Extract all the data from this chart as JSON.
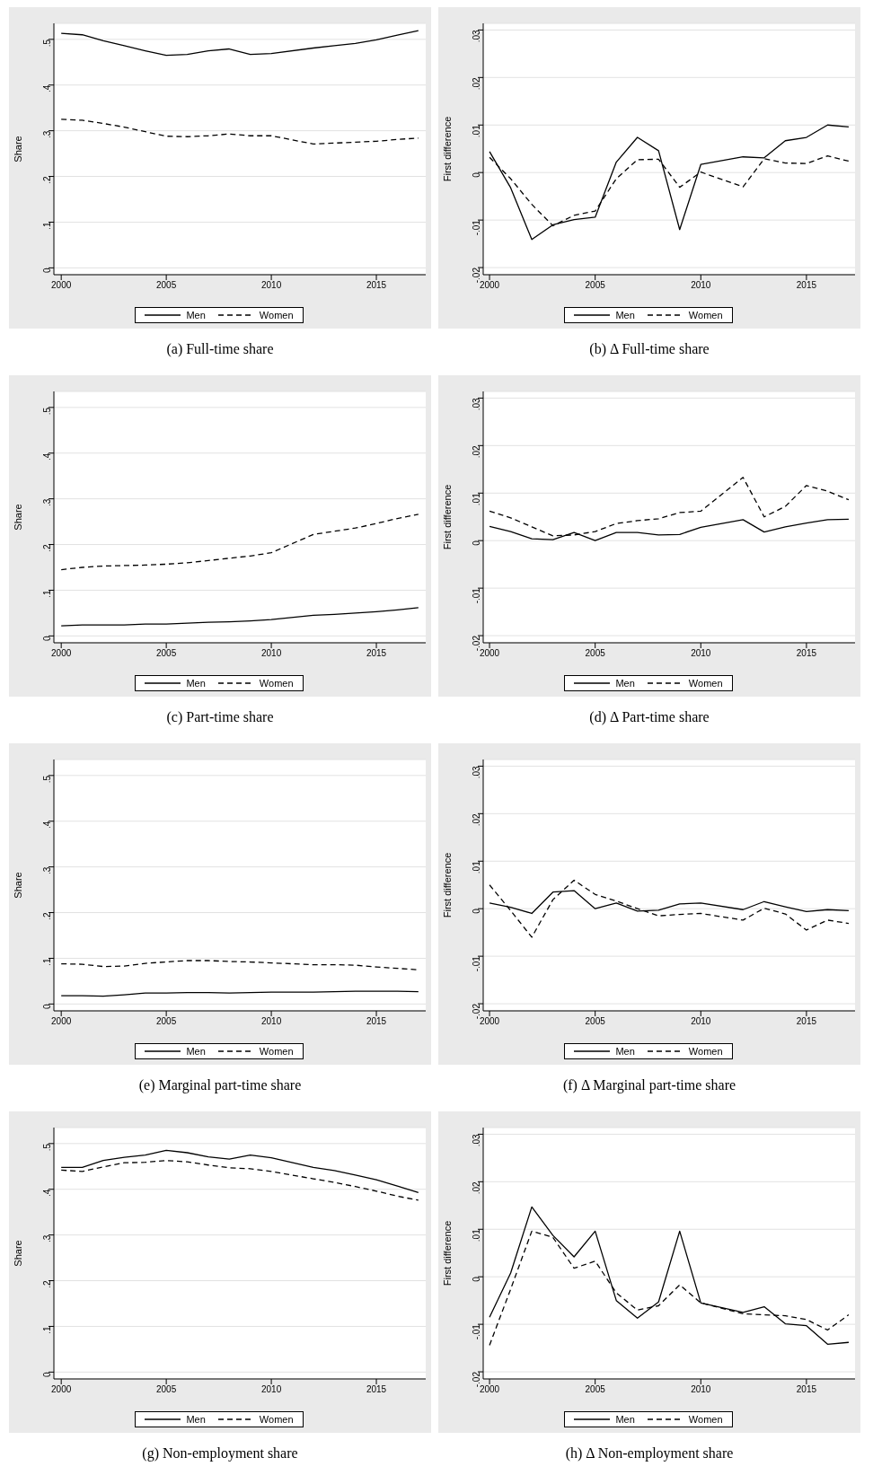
{
  "chart_data": [
    {
      "type": "line",
      "title": "(a) Full-time share",
      "ylabel": "Share",
      "x": [
        2000,
        2001,
        2002,
        2003,
        2004,
        2005,
        2006,
        2007,
        2008,
        2009,
        2010,
        2012,
        2013,
        2014,
        2015,
        2016,
        2017
      ],
      "xlim": [
        1999.65,
        2017.35
      ],
      "xticks": [
        2000,
        2005,
        2010,
        2015
      ],
      "ylim": [
        -0.015,
        0.535
      ],
      "yticks": [
        {
          "value": 0,
          "label": "0"
        },
        {
          "value": 0.1,
          "label": ".1"
        },
        {
          "value": 0.2,
          "label": ".2"
        },
        {
          "value": 0.3,
          "label": ".3"
        },
        {
          "value": 0.4,
          "label": ".4"
        },
        {
          "value": 0.5,
          "label": ".5"
        }
      ],
      "grid": "y",
      "legend": "bottom",
      "series": [
        {
          "name": "Men",
          "color": "#000000",
          "line_style": "solid",
          "values": [
            0.513,
            0.51,
            0.497,
            0.486,
            0.475,
            0.465,
            0.467,
            0.475,
            0.479,
            0.467,
            0.469,
            0.481,
            0.486,
            0.491,
            0.499,
            0.509,
            0.519
          ]
        },
        {
          "name": "Women",
          "color": "#000000",
          "line_style": "dashed",
          "values": [
            0.325,
            0.323,
            0.316,
            0.308,
            0.298,
            0.288,
            0.287,
            0.289,
            0.293,
            0.289,
            0.289,
            0.271,
            0.273,
            0.275,
            0.277,
            0.281,
            0.284
          ]
        }
      ]
    },
    {
      "type": "line",
      "title": "(b) Δ Full-time share",
      "ylabel": "First difference",
      "x": [
        2000,
        2001,
        2002,
        2003,
        2004,
        2005,
        2006,
        2007,
        2008,
        2009,
        2010,
        2012,
        2013,
        2014,
        2015,
        2016,
        2017
      ],
      "xlim": [
        1999.7,
        2017.3
      ],
      "xticks": [
        2000,
        2005,
        2010,
        2015
      ],
      "ylim": [
        -0.0215,
        0.0314
      ],
      "yticks": [
        {
          "value": -0.02,
          "label": "-.02"
        },
        {
          "value": -0.01,
          "label": "-.01"
        },
        {
          "value": 0,
          "label": "0"
        },
        {
          "value": 0.01,
          "label": ".01"
        },
        {
          "value": 0.02,
          "label": ".02"
        },
        {
          "value": 0.03,
          "label": ".03"
        }
      ],
      "grid": "y",
      "legend": "bottom",
      "series": [
        {
          "name": "Men",
          "color": "#000000",
          "line_style": "solid",
          "values": [
            0.0044,
            -0.0032,
            -0.0141,
            -0.011,
            -0.0099,
            -0.0094,
            0.0022,
            0.0074,
            0.0046,
            -0.012,
            0.0017,
            0.0033,
            0.0031,
            0.0067,
            0.0074,
            0.01,
            0.0096
          ]
        },
        {
          "name": "Women",
          "color": "#000000",
          "line_style": "dashed",
          "values": [
            0.0032,
            -0.0013,
            -0.0067,
            -0.0112,
            -0.009,
            -0.0081,
            -0.0013,
            0.0027,
            0.0028,
            -0.0031,
            0.0001,
            -0.003,
            0.0029,
            0.002,
            0.0019,
            0.0035,
            0.0024
          ]
        }
      ]
    },
    {
      "type": "line",
      "title": "(c) Part-time share",
      "ylabel": "Share",
      "x": [
        2000,
        2001,
        2002,
        2003,
        2004,
        2005,
        2006,
        2007,
        2008,
        2009,
        2010,
        2012,
        2013,
        2014,
        2015,
        2016,
        2017
      ],
      "xlim": [
        1999.65,
        2017.35
      ],
      "xticks": [
        2000,
        2005,
        2010,
        2015
      ],
      "ylim": [
        -0.015,
        0.535
      ],
      "yticks": [
        {
          "value": 0,
          "label": "0"
        },
        {
          "value": 0.1,
          "label": ".1"
        },
        {
          "value": 0.2,
          "label": ".2"
        },
        {
          "value": 0.3,
          "label": ".3"
        },
        {
          "value": 0.4,
          "label": ".4"
        },
        {
          "value": 0.5,
          "label": ".5"
        }
      ],
      "grid": "y",
      "legend": "bottom",
      "series": [
        {
          "name": "Men",
          "color": "#000000",
          "line_style": "solid",
          "values": [
            0.022,
            0.024,
            0.024,
            0.024,
            0.026,
            0.026,
            0.028,
            0.03,
            0.031,
            0.033,
            0.036,
            0.045,
            0.047,
            0.05,
            0.053,
            0.057,
            0.062
          ]
        },
        {
          "name": "Women",
          "color": "#000000",
          "line_style": "dashed",
          "values": [
            0.145,
            0.15,
            0.153,
            0.154,
            0.155,
            0.157,
            0.16,
            0.165,
            0.17,
            0.175,
            0.182,
            0.222,
            0.229,
            0.236,
            0.246,
            0.257,
            0.266
          ]
        }
      ]
    },
    {
      "type": "line",
      "title": "(d) Δ Part-time share",
      "ylabel": "First difference",
      "x": [
        2000,
        2001,
        2002,
        2003,
        2004,
        2005,
        2006,
        2007,
        2008,
        2009,
        2010,
        2012,
        2013,
        2014,
        2015,
        2016,
        2017
      ],
      "xlim": [
        1999.7,
        2017.3
      ],
      "xticks": [
        2000,
        2005,
        2010,
        2015
      ],
      "ylim": [
        -0.0215,
        0.0314
      ],
      "yticks": [
        {
          "value": -0.02,
          "label": "-.02"
        },
        {
          "value": -0.01,
          "label": "-.01"
        },
        {
          "value": 0,
          "label": "0"
        },
        {
          "value": 0.01,
          "label": ".01"
        },
        {
          "value": 0.02,
          "label": ".02"
        },
        {
          "value": 0.03,
          "label": ".03"
        }
      ],
      "grid": "y",
      "legend": "bottom",
      "series": [
        {
          "name": "Men",
          "color": "#000000",
          "line_style": "solid",
          "values": [
            0.003,
            0.0019,
            0.0004,
            0.0002,
            0.0017,
            0,
            0.0017,
            0.0017,
            0.0012,
            0.0013,
            0.0028,
            0.0044,
            0.0018,
            0.0029,
            0.0037,
            0.0044,
            0.0045
          ]
        },
        {
          "name": "Women",
          "color": "#000000",
          "line_style": "dashed",
          "values": [
            0.0062,
            0.0048,
            0.0029,
            0.001,
            0.0012,
            0.0019,
            0.0036,
            0.0042,
            0.0046,
            0.0059,
            0.0062,
            0.0133,
            0.005,
            0.0072,
            0.0116,
            0.0104,
            0.0086
          ]
        }
      ]
    },
    {
      "type": "line",
      "title": "(e) Marginal part-time share",
      "ylabel": "Share",
      "x": [
        2000,
        2001,
        2002,
        2003,
        2004,
        2005,
        2006,
        2007,
        2008,
        2009,
        2010,
        2012,
        2013,
        2014,
        2015,
        2016,
        2017
      ],
      "xlim": [
        1999.65,
        2017.35
      ],
      "xticks": [
        2000,
        2005,
        2010,
        2015
      ],
      "ylim": [
        -0.015,
        0.535
      ],
      "yticks": [
        {
          "value": 0,
          "label": "0"
        },
        {
          "value": 0.1,
          "label": ".1"
        },
        {
          "value": 0.2,
          "label": ".2"
        },
        {
          "value": 0.3,
          "label": ".3"
        },
        {
          "value": 0.4,
          "label": ".4"
        },
        {
          "value": 0.5,
          "label": ".5"
        }
      ],
      "grid": "y",
      "legend": "bottom",
      "series": [
        {
          "name": "Men",
          "color": "#000000",
          "line_style": "solid",
          "values": [
            0.018,
            0.018,
            0.017,
            0.02,
            0.024,
            0.024,
            0.025,
            0.025,
            0.024,
            0.025,
            0.026,
            0.026,
            0.027,
            0.028,
            0.028,
            0.028,
            0.027
          ]
        },
        {
          "name": "Women",
          "color": "#000000",
          "line_style": "dashed",
          "values": [
            0.088,
            0.087,
            0.082,
            0.083,
            0.089,
            0.092,
            0.095,
            0.095,
            0.093,
            0.092,
            0.09,
            0.086,
            0.086,
            0.085,
            0.081,
            0.078,
            0.075
          ]
        }
      ]
    },
    {
      "type": "line",
      "title": "(f) Δ Marginal part-time share",
      "ylabel": "First difference",
      "x": [
        2000,
        2001,
        2002,
        2003,
        2004,
        2005,
        2006,
        2007,
        2008,
        2009,
        2010,
        2012,
        2013,
        2014,
        2015,
        2016,
        2017
      ],
      "xlim": [
        1999.7,
        2017.3
      ],
      "xticks": [
        2000,
        2005,
        2010,
        2015
      ],
      "ylim": [
        -0.0215,
        0.0314
      ],
      "yticks": [
        {
          "value": -0.02,
          "label": "-.02"
        },
        {
          "value": -0.01,
          "label": "-.01"
        },
        {
          "value": 0,
          "label": "0"
        },
        {
          "value": 0.01,
          "label": ".01"
        },
        {
          "value": 0.02,
          "label": ".02"
        },
        {
          "value": 0.03,
          "label": ".03"
        }
      ],
      "grid": "y",
      "legend": "bottom",
      "series": [
        {
          "name": "Men",
          "color": "#000000",
          "line_style": "solid",
          "values": [
            0.0012,
            0.0003,
            -0.001,
            0.0035,
            0.0038,
            0,
            0.0012,
            -0.0005,
            -0.0003,
            0.001,
            0.0012,
            -0.0002,
            0.0015,
            0.0004,
            -0.0006,
            -0.0002,
            -0.0004
          ]
        },
        {
          "name": "Women",
          "color": "#000000",
          "line_style": "dashed",
          "values": [
            0.005,
            -0.0004,
            -0.006,
            0.0019,
            0.006,
            0.003,
            0.0016,
            0,
            -0.0015,
            -0.0012,
            -0.001,
            -0.0024,
            0.0001,
            -0.0011,
            -0.0045,
            -0.0024,
            -0.0031
          ]
        }
      ]
    },
    {
      "type": "line",
      "title": "(g) Non-employment share",
      "ylabel": "Share",
      "x": [
        2000,
        2001,
        2002,
        2003,
        2004,
        2005,
        2006,
        2007,
        2008,
        2009,
        2010,
        2012,
        2013,
        2014,
        2015,
        2016,
        2017
      ],
      "xlim": [
        1999.65,
        2017.35
      ],
      "xticks": [
        2000,
        2005,
        2010,
        2015
      ],
      "ylim": [
        -0.015,
        0.535
      ],
      "yticks": [
        {
          "value": 0,
          "label": "0"
        },
        {
          "value": 0.1,
          "label": ".1"
        },
        {
          "value": 0.2,
          "label": ".2"
        },
        {
          "value": 0.3,
          "label": ".3"
        },
        {
          "value": 0.4,
          "label": ".4"
        },
        {
          "value": 0.5,
          "label": ".5"
        }
      ],
      "grid": "y",
      "legend": "bottom",
      "series": [
        {
          "name": "Men",
          "color": "#000000",
          "line_style": "solid",
          "values": [
            0.448,
            0.448,
            0.463,
            0.47,
            0.475,
            0.485,
            0.48,
            0.471,
            0.466,
            0.475,
            0.469,
            0.448,
            0.441,
            0.431,
            0.421,
            0.407,
            0.393
          ]
        },
        {
          "name": "Women",
          "color": "#000000",
          "line_style": "dashed",
          "values": [
            0.442,
            0.439,
            0.449,
            0.458,
            0.459,
            0.463,
            0.46,
            0.453,
            0.447,
            0.445,
            0.439,
            0.423,
            0.415,
            0.406,
            0.396,
            0.385,
            0.376
          ]
        }
      ]
    },
    {
      "type": "line",
      "title": "(h) Δ Non-employment share",
      "ylabel": "First difference",
      "x": [
        2000,
        2001,
        2002,
        2003,
        2004,
        2005,
        2006,
        2007,
        2008,
        2009,
        2010,
        2012,
        2013,
        2014,
        2015,
        2016,
        2017
      ],
      "xlim": [
        1999.7,
        2017.3
      ],
      "xticks": [
        2000,
        2005,
        2010,
        2015
      ],
      "ylim": [
        -0.0215,
        0.0314
      ],
      "yticks": [
        {
          "value": -0.02,
          "label": "-.02"
        },
        {
          "value": -0.01,
          "label": "-.01"
        },
        {
          "value": 0,
          "label": "0"
        },
        {
          "value": 0.01,
          "label": ".01"
        },
        {
          "value": 0.02,
          "label": ".02"
        },
        {
          "value": 0.03,
          "label": ".03"
        }
      ],
      "grid": "y",
      "legend": "bottom",
      "series": [
        {
          "name": "Men",
          "color": "#000000",
          "line_style": "solid",
          "values": [
            -0.0085,
            0.0008,
            0.0147,
            0.0087,
            0.0042,
            0.0096,
            -0.005,
            -0.0087,
            -0.0053,
            0.0096,
            -0.0055,
            -0.0075,
            -0.0063,
            -0.0099,
            -0.0103,
            -0.0142,
            -0.0138
          ]
        },
        {
          "name": "Women",
          "color": "#000000",
          "line_style": "dashed",
          "values": [
            -0.0144,
            -0.0026,
            0.0096,
            0.0083,
            0.0018,
            0.0033,
            -0.0034,
            -0.007,
            -0.0061,
            -0.0017,
            -0.0055,
            -0.0078,
            -0.008,
            -0.0082,
            -0.009,
            -0.0112,
            -0.008
          ]
        }
      ]
    }
  ]
}
